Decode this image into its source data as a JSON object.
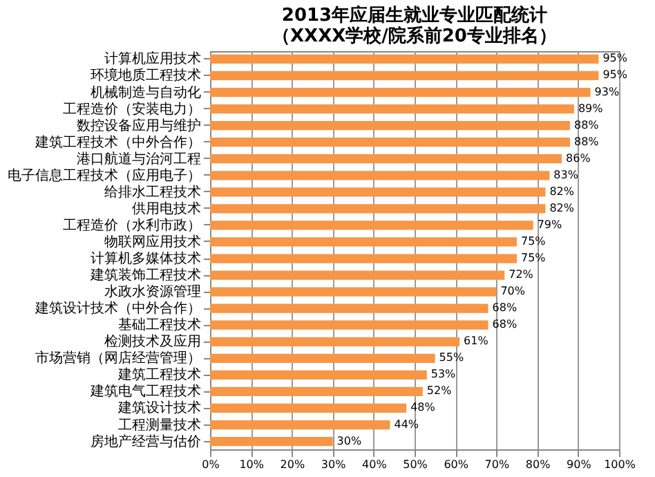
{
  "chart_data": {
    "type": "bar",
    "orientation": "horizontal",
    "title": [
      "2013年应届生就业专业匹配统计",
      "（XXXX学校/院系前20专业排名）"
    ],
    "categories": [
      "计算机应用技术",
      "环境地质工程技术",
      "机械制造与自动化",
      "工程造价（安装电力）",
      "数控设备应用与维护",
      "建筑工程技术（中外合作）",
      "港口航道与治河工程",
      "电子信息工程技术（应用电子）",
      "给排水工程技术",
      "供用电技术",
      "工程造价（水利市政）",
      "物联网应用技术",
      "计算机多媒体技术",
      "建筑装饰工程技术",
      "水政水资源管理",
      "建筑设计技术（中外合作）",
      "基础工程技术",
      "检测技术及应用",
      "市场营销（网店经营管理）",
      "建筑工程技术",
      "建筑电气工程技术",
      "建筑设计技术",
      "工程测量技术",
      "房地产经营与估价"
    ],
    "values": [
      95,
      95,
      93,
      89,
      88,
      88,
      86,
      83,
      82,
      82,
      79,
      75,
      75,
      72,
      70,
      68,
      68,
      61,
      55,
      53,
      52,
      48,
      44,
      30
    ],
    "value_labels": [
      "95%",
      "95%",
      "93%",
      "89%",
      "88%",
      "88%",
      "86%",
      "83%",
      "82%",
      "82%",
      "79%",
      "75%",
      "75%",
      "72%",
      "70%",
      "68%",
      "68%",
      "61%",
      "55%",
      "53%",
      "52%",
      "48%",
      "44%",
      "30%"
    ],
    "color": "#f79646",
    "xlim": [
      0,
      100
    ],
    "xticks": [
      {
        "value": 0,
        "label": "0%"
      },
      {
        "value": 10,
        "label": "10%"
      },
      {
        "value": 20,
        "label": "20%"
      },
      {
        "value": 30,
        "label": "30%"
      },
      {
        "value": 40,
        "label": "40%"
      },
      {
        "value": 50,
        "label": "50%"
      },
      {
        "value": 60,
        "label": "60%"
      },
      {
        "value": 70,
        "label": "70%"
      },
      {
        "value": 80,
        "label": "80%"
      },
      {
        "value": 90,
        "label": "90%"
      },
      {
        "value": 100,
        "label": "100%"
      }
    ],
    "grid": "x"
  }
}
